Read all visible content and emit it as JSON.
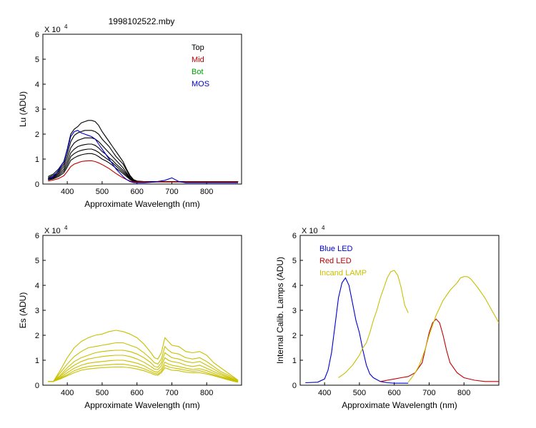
{
  "figure_title": "1998102522.mby",
  "chart_data": [
    {
      "type": "line",
      "xlabel": "Approximate Wavelength (nm)",
      "ylabel": "Lu (ADU)",
      "xlim": [
        330,
        900
      ],
      "ylim": [
        0,
        6
      ],
      "x_ticks": [
        400,
        500,
        600,
        700,
        800
      ],
      "y_ticks": [
        0,
        1,
        2,
        3,
        4,
        5,
        6
      ],
      "y_multiplier": "X 10",
      "y_exponent": "4",
      "legend": {
        "placement": "top-right",
        "entries": [
          {
            "label": "Top",
            "color": "#000000"
          },
          {
            "label": "Mid",
            "color": "#c00000"
          },
          {
            "label": "Bot",
            "color": "#00a000"
          },
          {
            "label": "MOS",
            "color": "#0000cc"
          }
        ]
      },
      "wavelengths": [
        345,
        360,
        375,
        390,
        400,
        410,
        420,
        430,
        440,
        450,
        460,
        470,
        480,
        490,
        500,
        510,
        520,
        530,
        540,
        550,
        560,
        570,
        580,
        590,
        600,
        620,
        650,
        680,
        700,
        720,
        740,
        760,
        780,
        800,
        820,
        850,
        880,
        890
      ],
      "series": [
        {
          "group": "Top",
          "color": "#000000",
          "values": [
            0.3,
            0.4,
            0.6,
            0.9,
            1.4,
            2.0,
            2.2,
            2.3,
            2.45,
            2.5,
            2.55,
            2.55,
            2.5,
            2.35,
            2.1,
            1.9,
            1.7,
            1.5,
            1.3,
            1.1,
            0.9,
            0.6,
            0.35,
            0.18,
            0.12,
            0.1,
            0.09,
            0.09,
            0.1,
            0.1,
            0.1,
            0.1,
            0.1,
            0.1,
            0.1,
            0.1,
            0.1,
            0.1
          ]
        },
        {
          "group": "Top",
          "color": "#000000",
          "values": [
            0.25,
            0.35,
            0.5,
            0.8,
            1.2,
            1.7,
            1.95,
            2.05,
            2.1,
            2.15,
            2.15,
            2.15,
            2.1,
            2.0,
            1.8,
            1.65,
            1.5,
            1.3,
            1.1,
            0.95,
            0.8,
            0.55,
            0.3,
            0.16,
            0.11,
            0.1,
            0.09,
            0.09,
            0.1,
            0.1,
            0.1,
            0.1,
            0.1,
            0.1,
            0.1,
            0.1,
            0.1,
            0.1
          ]
        },
        {
          "group": "Top",
          "color": "#000000",
          "values": [
            0.22,
            0.3,
            0.45,
            0.7,
            1.05,
            1.45,
            1.65,
            1.75,
            1.8,
            1.85,
            1.85,
            1.85,
            1.8,
            1.7,
            1.55,
            1.4,
            1.25,
            1.1,
            0.95,
            0.8,
            0.65,
            0.45,
            0.25,
            0.14,
            0.1,
            0.09,
            0.09,
            0.09,
            0.1,
            0.1,
            0.1,
            0.1,
            0.1,
            0.1,
            0.1,
            0.1,
            0.1,
            0.1
          ]
        },
        {
          "group": "Top",
          "color": "#000000",
          "values": [
            0.2,
            0.27,
            0.4,
            0.6,
            0.9,
            1.25,
            1.4,
            1.5,
            1.55,
            1.58,
            1.6,
            1.6,
            1.55,
            1.45,
            1.3,
            1.2,
            1.05,
            0.95,
            0.8,
            0.68,
            0.55,
            0.4,
            0.22,
            0.13,
            0.1,
            0.09,
            0.09,
            0.09,
            0.1,
            0.1,
            0.1,
            0.1,
            0.1,
            0.1,
            0.1,
            0.1,
            0.1,
            0.1
          ]
        },
        {
          "group": "Top",
          "color": "#000000",
          "values": [
            0.18,
            0.24,
            0.35,
            0.52,
            0.78,
            1.1,
            1.22,
            1.3,
            1.35,
            1.38,
            1.4,
            1.4,
            1.35,
            1.27,
            1.15,
            1.05,
            0.95,
            0.85,
            0.72,
            0.6,
            0.48,
            0.35,
            0.2,
            0.12,
            0.1,
            0.09,
            0.09,
            0.09,
            0.1,
            0.1,
            0.1,
            0.1,
            0.1,
            0.1,
            0.1,
            0.1,
            0.1,
            0.1
          ]
        },
        {
          "group": "Top",
          "color": "#000000",
          "values": [
            0.16,
            0.21,
            0.3,
            0.45,
            0.68,
            0.95,
            1.05,
            1.12,
            1.17,
            1.2,
            1.22,
            1.22,
            1.18,
            1.1,
            1.0,
            0.93,
            0.85,
            0.75,
            0.63,
            0.53,
            0.42,
            0.3,
            0.18,
            0.11,
            0.09,
            0.09,
            0.09,
            0.09,
            0.1,
            0.1,
            0.1,
            0.1,
            0.1,
            0.1,
            0.1,
            0.1,
            0.1,
            0.1
          ]
        },
        {
          "group": "Mid",
          "color": "#c00000",
          "values": [
            0.12,
            0.16,
            0.22,
            0.33,
            0.5,
            0.7,
            0.8,
            0.85,
            0.9,
            0.92,
            0.93,
            0.93,
            0.9,
            0.85,
            0.78,
            0.7,
            0.62,
            0.52,
            0.42,
            0.33,
            0.25,
            0.18,
            0.12,
            0.09,
            0.08,
            0.08,
            0.08,
            0.08,
            0.08,
            0.08,
            0.08,
            0.08,
            0.08,
            0.08,
            0.08,
            0.08,
            0.08,
            0.08
          ]
        },
        {
          "group": "MOS",
          "color": "#0000cc",
          "values": [
            0.2,
            0.3,
            0.55,
            0.9,
            1.35,
            1.9,
            2.1,
            2.15,
            2.05,
            2.0,
            1.95,
            1.9,
            1.8,
            1.6,
            1.4,
            1.2,
            1.0,
            0.8,
            0.6,
            0.45,
            0.3,
            0.18,
            0.1,
            0.06,
            0.05,
            0.05,
            0.08,
            0.15,
            0.25,
            0.1,
            0.05,
            0.05,
            0.05,
            0.05,
            0.05,
            0.05,
            0.05,
            0.05
          ]
        }
      ]
    },
    {
      "type": "line",
      "xlabel": "Approximate Wavelength (nm)",
      "ylabel": "Es (ADU)",
      "xlim": [
        330,
        900
      ],
      "ylim": [
        0,
        6
      ],
      "x_ticks": [
        400,
        500,
        600,
        700,
        800
      ],
      "y_ticks": [
        0,
        1,
        2,
        3,
        4,
        5,
        6
      ],
      "y_multiplier": "X 10",
      "y_exponent": "4",
      "series_color": "#c8c000",
      "wavelengths": [
        345,
        360,
        380,
        400,
        420,
        440,
        460,
        480,
        500,
        520,
        540,
        560,
        580,
        600,
        620,
        640,
        650,
        660,
        670,
        680,
        690,
        700,
        720,
        740,
        760,
        780,
        800,
        820,
        840,
        860,
        880,
        890
      ],
      "series_values": [
        [
          0.15,
          0.15,
          0.6,
          1.1,
          1.5,
          1.75,
          1.9,
          2.0,
          2.05,
          2.15,
          2.2,
          2.15,
          2.05,
          1.9,
          1.65,
          1.3,
          1.1,
          1.05,
          1.3,
          1.9,
          1.75,
          1.6,
          1.55,
          1.35,
          1.3,
          1.35,
          1.2,
          0.9,
          0.7,
          0.5,
          0.3,
          0.2
        ],
        [
          0.15,
          0.15,
          0.5,
          0.85,
          1.15,
          1.35,
          1.5,
          1.55,
          1.6,
          1.65,
          1.7,
          1.7,
          1.6,
          1.5,
          1.3,
          1.05,
          0.9,
          0.85,
          1.05,
          1.55,
          1.4,
          1.3,
          1.25,
          1.1,
          1.05,
          1.1,
          0.95,
          0.75,
          0.55,
          0.42,
          0.26,
          0.18
        ],
        [
          0.15,
          0.15,
          0.4,
          0.7,
          0.95,
          1.1,
          1.2,
          1.3,
          1.35,
          1.38,
          1.4,
          1.4,
          1.35,
          1.25,
          1.1,
          0.9,
          0.75,
          0.72,
          0.9,
          1.3,
          1.2,
          1.1,
          1.05,
          0.95,
          0.9,
          0.95,
          0.8,
          0.65,
          0.48,
          0.36,
          0.22,
          0.16
        ],
        [
          0.15,
          0.15,
          0.35,
          0.6,
          0.8,
          0.95,
          1.05,
          1.1,
          1.15,
          1.18,
          1.2,
          1.2,
          1.15,
          1.05,
          0.92,
          0.75,
          0.65,
          0.62,
          0.78,
          1.1,
          1.0,
          0.95,
          0.9,
          0.8,
          0.75,
          0.8,
          0.68,
          0.55,
          0.42,
          0.32,
          0.2,
          0.15
        ],
        [
          0.15,
          0.15,
          0.3,
          0.5,
          0.68,
          0.8,
          0.88,
          0.92,
          0.95,
          0.98,
          1.0,
          1.0,
          0.95,
          0.88,
          0.78,
          0.62,
          0.55,
          0.52,
          0.65,
          0.92,
          0.85,
          0.8,
          0.75,
          0.68,
          0.63,
          0.66,
          0.58,
          0.48,
          0.36,
          0.28,
          0.18,
          0.14
        ],
        [
          0.15,
          0.15,
          0.27,
          0.42,
          0.58,
          0.68,
          0.75,
          0.78,
          0.8,
          0.82,
          0.84,
          0.84,
          0.8,
          0.75,
          0.66,
          0.54,
          0.48,
          0.45,
          0.56,
          0.8,
          0.74,
          0.7,
          0.66,
          0.6,
          0.56,
          0.58,
          0.5,
          0.42,
          0.32,
          0.25,
          0.17,
          0.13
        ],
        [
          0.15,
          0.15,
          0.25,
          0.38,
          0.5,
          0.6,
          0.65,
          0.68,
          0.7,
          0.72,
          0.73,
          0.73,
          0.7,
          0.65,
          0.58,
          0.48,
          0.42,
          0.4,
          0.5,
          0.7,
          0.65,
          0.6,
          0.58,
          0.52,
          0.5,
          0.5,
          0.45,
          0.38,
          0.3,
          0.22,
          0.15,
          0.12
        ]
      ]
    },
    {
      "type": "line",
      "xlabel": "Approximate Wavelength (nm)",
      "ylabel": "Internal Calib. Lamps (ADU)",
      "xlim": [
        330,
        900
      ],
      "ylim": [
        0,
        6
      ],
      "x_ticks": [
        400,
        500,
        600,
        700,
        800
      ],
      "y_ticks": [
        0,
        1,
        2,
        3,
        4,
        5,
        6
      ],
      "y_multiplier": "X 10",
      "y_exponent": "4",
      "legend": {
        "placement": "top-left",
        "entries": [
          {
            "label": "Blue LED",
            "color": "#0000cc"
          },
          {
            "label": "Red LED",
            "color": "#c00000"
          },
          {
            "label": "Incand LAMP",
            "color": "#c8c000"
          }
        ]
      },
      "series": [
        {
          "name": "Blue LED",
          "color": "#0000cc",
          "x": [
            345,
            380,
            400,
            410,
            420,
            430,
            440,
            450,
            460,
            470,
            480,
            490,
            500,
            510,
            520,
            530,
            540,
            560,
            580,
            600,
            640
          ],
          "y": [
            0.1,
            0.12,
            0.25,
            0.6,
            1.3,
            2.4,
            3.5,
            4.1,
            4.3,
            4.0,
            3.3,
            2.6,
            2.1,
            1.4,
            0.8,
            0.45,
            0.3,
            0.15,
            0.1,
            0.08,
            0.08
          ]
        },
        {
          "name": "Red LED",
          "color": "#c00000",
          "x": [
            560,
            580,
            600,
            620,
            640,
            660,
            680,
            690,
            700,
            710,
            720,
            730,
            740,
            750,
            760,
            780,
            800,
            830,
            860,
            900
          ],
          "y": [
            0.15,
            0.2,
            0.25,
            0.3,
            0.35,
            0.5,
            0.9,
            1.5,
            2.1,
            2.5,
            2.65,
            2.5,
            2.0,
            1.4,
            0.9,
            0.5,
            0.3,
            0.2,
            0.15,
            0.15
          ]
        },
        {
          "name": "Incand LAMP (segment 1)",
          "color": "#c8c000",
          "x": [
            440,
            460,
            480,
            500,
            510,
            520,
            530,
            540,
            550,
            560,
            570,
            580,
            590,
            600,
            610,
            620,
            630,
            640
          ],
          "y": [
            0.3,
            0.5,
            0.8,
            1.2,
            1.5,
            1.7,
            2.1,
            2.6,
            3.0,
            3.5,
            3.9,
            4.3,
            4.55,
            4.6,
            4.4,
            3.9,
            3.2,
            2.9
          ]
        },
        {
          "name": "Incand LAMP (segment 2)",
          "color": "#c8c000",
          "x": [
            640,
            650,
            660,
            670,
            680,
            690,
            700,
            720,
            740,
            760,
            780,
            790,
            800,
            810,
            820,
            840,
            860,
            880,
            900
          ],
          "y": [
            0.12,
            0.3,
            0.5,
            0.75,
            1.1,
            1.5,
            2.0,
            2.8,
            3.4,
            3.8,
            4.1,
            4.3,
            4.35,
            4.35,
            4.25,
            3.9,
            3.5,
            3.0,
            2.5
          ]
        }
      ]
    }
  ]
}
